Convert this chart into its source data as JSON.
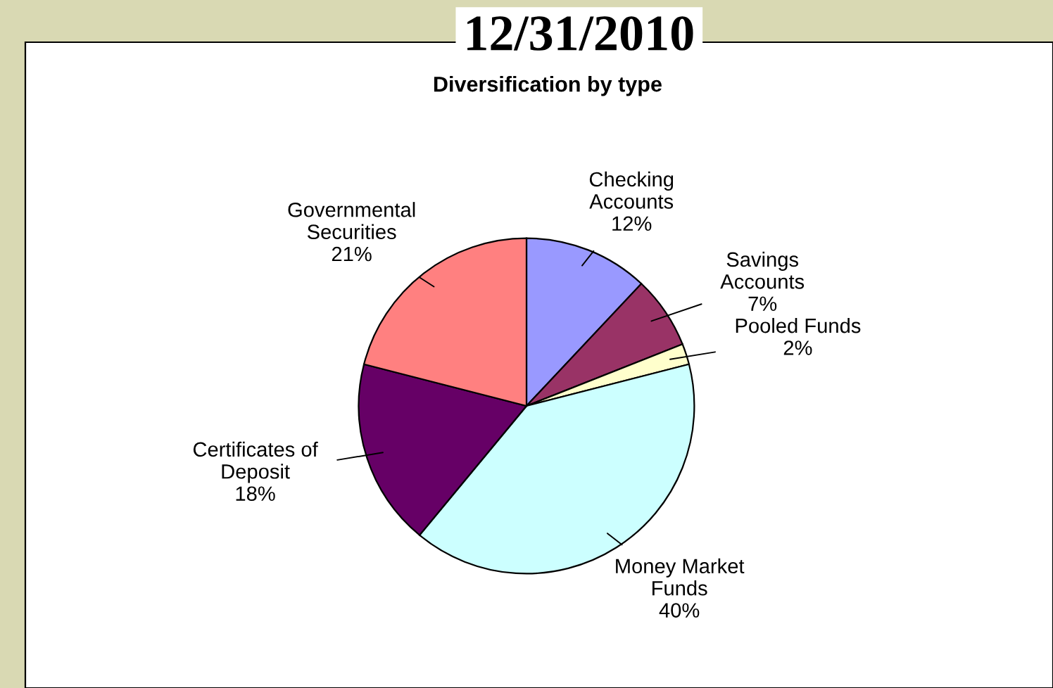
{
  "chart_data": {
    "type": "pie",
    "title": "Diversification by type",
    "subtitle": "12/31/2010",
    "categories": [
      "Checking\nAccounts",
      "Savings\nAccounts",
      "Pooled Funds",
      "Money Market\nFunds",
      "Certificates of\nDeposit",
      "Governmental\nSecurities"
    ],
    "values": [
      12,
      7,
      2,
      40,
      18,
      21
    ],
    "colors": [
      "#9999ff",
      "#993366",
      "#ffffcc",
      "#ccffff",
      "#660066",
      "#ff8080"
    ],
    "value_labels": [
      "12%",
      "7%",
      "2%",
      "40%",
      "18%",
      "21%"
    ]
  }
}
